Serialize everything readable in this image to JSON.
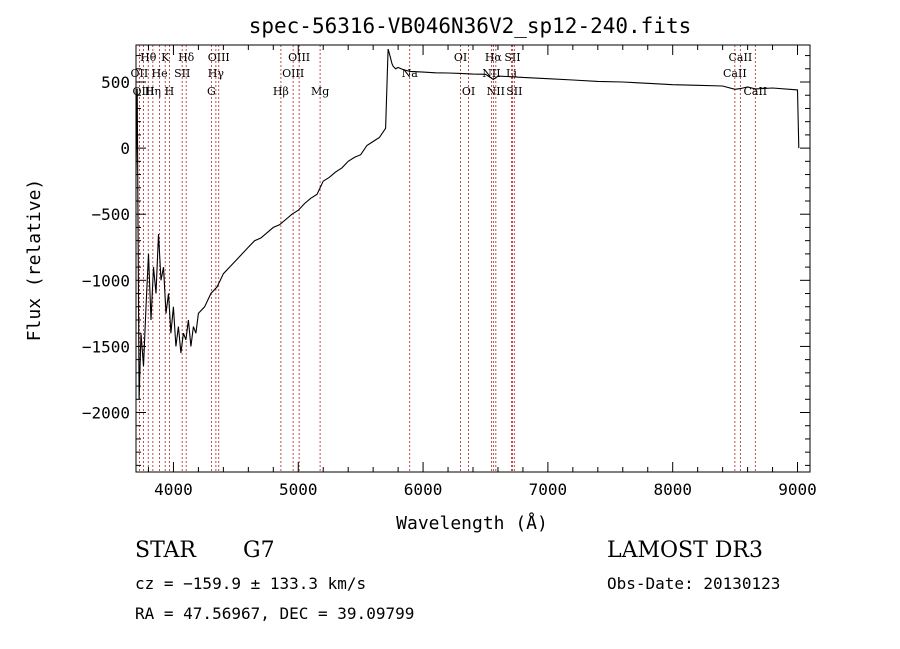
{
  "chart_data": {
    "type": "line",
    "title": "spec-56316-VB046N36V2_sp12-240.fits",
    "xlabel": "Wavelength (Å)",
    "ylabel": "Flux (relative)",
    "xlim": [
      3700,
      9100
    ],
    "ylim": [
      -2450,
      780
    ],
    "x_ticks": [
      4000,
      5000,
      6000,
      7000,
      8000,
      9000
    ],
    "y_ticks": [
      -2000,
      -1500,
      -1000,
      -500,
      0,
      500
    ],
    "x_tick_labels": [
      "4000",
      "5000",
      "6000",
      "7000",
      "8000",
      "9000"
    ],
    "y_tick_labels": [
      "−2000",
      "−1500",
      "−1000",
      "−500",
      "0",
      "500"
    ],
    "grid": false,
    "series": [
      {
        "name": "flux",
        "color": "#000000",
        "x": [
          3700,
          3710,
          3725,
          3740,
          3760,
          3780,
          3800,
          3820,
          3840,
          3860,
          3880,
          3900,
          3920,
          3940,
          3960,
          3980,
          4000,
          4020,
          4040,
          4060,
          4080,
          4100,
          4120,
          4140,
          4160,
          4180,
          4200,
          4250,
          4300,
          4350,
          4400,
          4450,
          4500,
          4550,
          4600,
          4650,
          4700,
          4750,
          4800,
          4850,
          4900,
          4950,
          5000,
          5050,
          5100,
          5150,
          5200,
          5250,
          5300,
          5350,
          5400,
          5450,
          5500,
          5550,
          5600,
          5650,
          5700,
          5720,
          5740,
          5750,
          5760,
          5780,
          5800,
          5850,
          5900,
          6000,
          6100,
          6200,
          6300,
          6400,
          6500,
          6563,
          6600,
          6700,
          6800,
          7000,
          7200,
          7400,
          7600,
          7800,
          8000,
          8200,
          8400,
          8498,
          8542,
          8600,
          8662,
          8800,
          9000,
          9010
        ],
        "y": [
          -200,
          450,
          -1900,
          -1400,
          -1650,
          -1200,
          -800,
          -1300,
          -900,
          -1100,
          -650,
          -1000,
          -900,
          -1250,
          -1100,
          -1400,
          -1200,
          -1500,
          -1350,
          -1550,
          -1400,
          -1450,
          -1300,
          -1500,
          -1350,
          -1400,
          -1250,
          -1200,
          -1100,
          -1050,
          -950,
          -900,
          -850,
          -800,
          -750,
          -700,
          -680,
          -640,
          -600,
          -580,
          -540,
          -500,
          -470,
          -420,
          -380,
          -350,
          -250,
          -220,
          -180,
          -150,
          -100,
          -70,
          -50,
          20,
          50,
          80,
          150,
          750,
          680,
          640,
          620,
          600,
          610,
          590,
          580,
          575,
          570,
          568,
          565,
          560,
          558,
          520,
          545,
          540,
          535,
          525,
          515,
          505,
          500,
          490,
          480,
          475,
          470,
          445,
          450,
          463,
          448,
          455,
          440,
          0
        ]
      }
    ],
    "line_labels": [
      {
        "name": "Hθ",
        "x": 3798,
        "row": 1
      },
      {
        "name": "OII",
        "x": 3727,
        "row": 2
      },
      {
        "name": "OIII",
        "x": 3760,
        "row": 3
      },
      {
        "name": "K",
        "x": 3934,
        "row": 1
      },
      {
        "name": "He",
        "x": 3889,
        "row": 2
      },
      {
        "name": "Hη",
        "x": 3835,
        "row": 3
      },
      {
        "name": "SII",
        "x": 4070,
        "row": 2
      },
      {
        "name": "Hδ",
        "x": 4102,
        "row": 1
      },
      {
        "name": "H",
        "x": 3968,
        "row": 3
      },
      {
        "name": "OIII",
        "x": 4363,
        "row": 1
      },
      {
        "name": "Hγ",
        "x": 4340,
        "row": 2
      },
      {
        "name": "G",
        "x": 4304,
        "row": 3
      },
      {
        "name": "OIII",
        "x": 5007,
        "row": 1
      },
      {
        "name": "OIII",
        "x": 4959,
        "row": 2
      },
      {
        "name": "Hβ",
        "x": 4861,
        "row": 3
      },
      {
        "name": "Mg",
        "x": 5175,
        "row": 3
      },
      {
        "name": "Na",
        "x": 5893,
        "row": 2
      },
      {
        "name": "OI",
        "x": 6300,
        "row": 1
      },
      {
        "name": "OI",
        "x": 6364,
        "row": 3
      },
      {
        "name": "Hα",
        "x": 6563,
        "row": 1
      },
      {
        "name": "SII",
        "x": 6716,
        "row": 1
      },
      {
        "name": "NII",
        "x": 6548,
        "row": 2
      },
      {
        "name": "Li",
        "x": 6708,
        "row": 2
      },
      {
        "name": "NII",
        "x": 6583,
        "row": 3
      },
      {
        "name": "SII",
        "x": 6731,
        "row": 3
      },
      {
        "name": "CaII",
        "x": 8542,
        "row": 1
      },
      {
        "name": "CaII",
        "x": 8498,
        "row": 2
      },
      {
        "name": "CaII",
        "x": 8662,
        "row": 3
      }
    ],
    "line_positions": [
      3727,
      3760,
      3798,
      3835,
      3889,
      3934,
      3968,
      4070,
      4102,
      4304,
      4340,
      4363,
      4861,
      4959,
      5007,
      5175,
      5893,
      6300,
      6364,
      6548,
      6563,
      6583,
      6708,
      6716,
      6731,
      8498,
      8542,
      8662
    ]
  },
  "info": {
    "class_label": "STAR",
    "subclass": "G7",
    "survey": "LAMOST DR3",
    "cz": "cz = −159.9 ± 133.3 km/s",
    "obs_date": "Obs-Date: 20130123",
    "coords": "RA =  47.56967, DEC =  39.09799"
  },
  "colors": {
    "line_marker": "#b22222",
    "axis": "#000000",
    "spectrum": "#000000"
  }
}
